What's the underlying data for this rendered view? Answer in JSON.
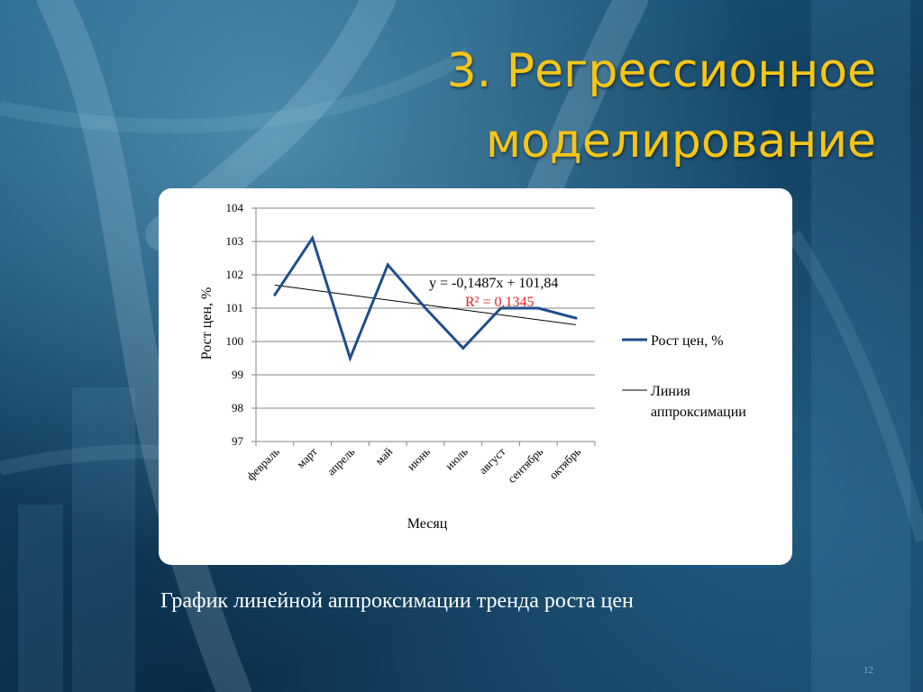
{
  "slide": {
    "title_line1": "3. Регрессионное",
    "title_line2": "моделирование",
    "caption": "График линейной аппроксимации тренда роста цен",
    "slide_number": "12"
  },
  "colors": {
    "title": "#f5c518",
    "series": "#1f4e8c",
    "trend": "#000000",
    "r2_text": "#e02020"
  },
  "chart_data": {
    "type": "line",
    "categories": [
      "февраль",
      "март",
      "апрель",
      "май",
      "июнь",
      "июль",
      "август",
      "сентябрь",
      "октябрь"
    ],
    "series": [
      {
        "name": "Рост цен, %",
        "values": [
          101.4,
          103.1,
          99.5,
          102.3,
          101.0,
          99.8,
          101.0,
          101.0,
          100.7
        ]
      }
    ],
    "trendline": {
      "name": "Линия аппроксимации",
      "equation": "y = -0,1487x + 101,84",
      "r2": "R² = 0,1345",
      "slope": -0.1487,
      "intercept": 101.84
    },
    "xlabel": "Месяц",
    "ylabel": "Рост цен, %",
    "ylim": [
      97,
      104
    ],
    "yticks": [
      "97",
      "98",
      "99",
      "100",
      "101",
      "102",
      "103",
      "104"
    ],
    "grid": true,
    "legend_position": "right"
  }
}
